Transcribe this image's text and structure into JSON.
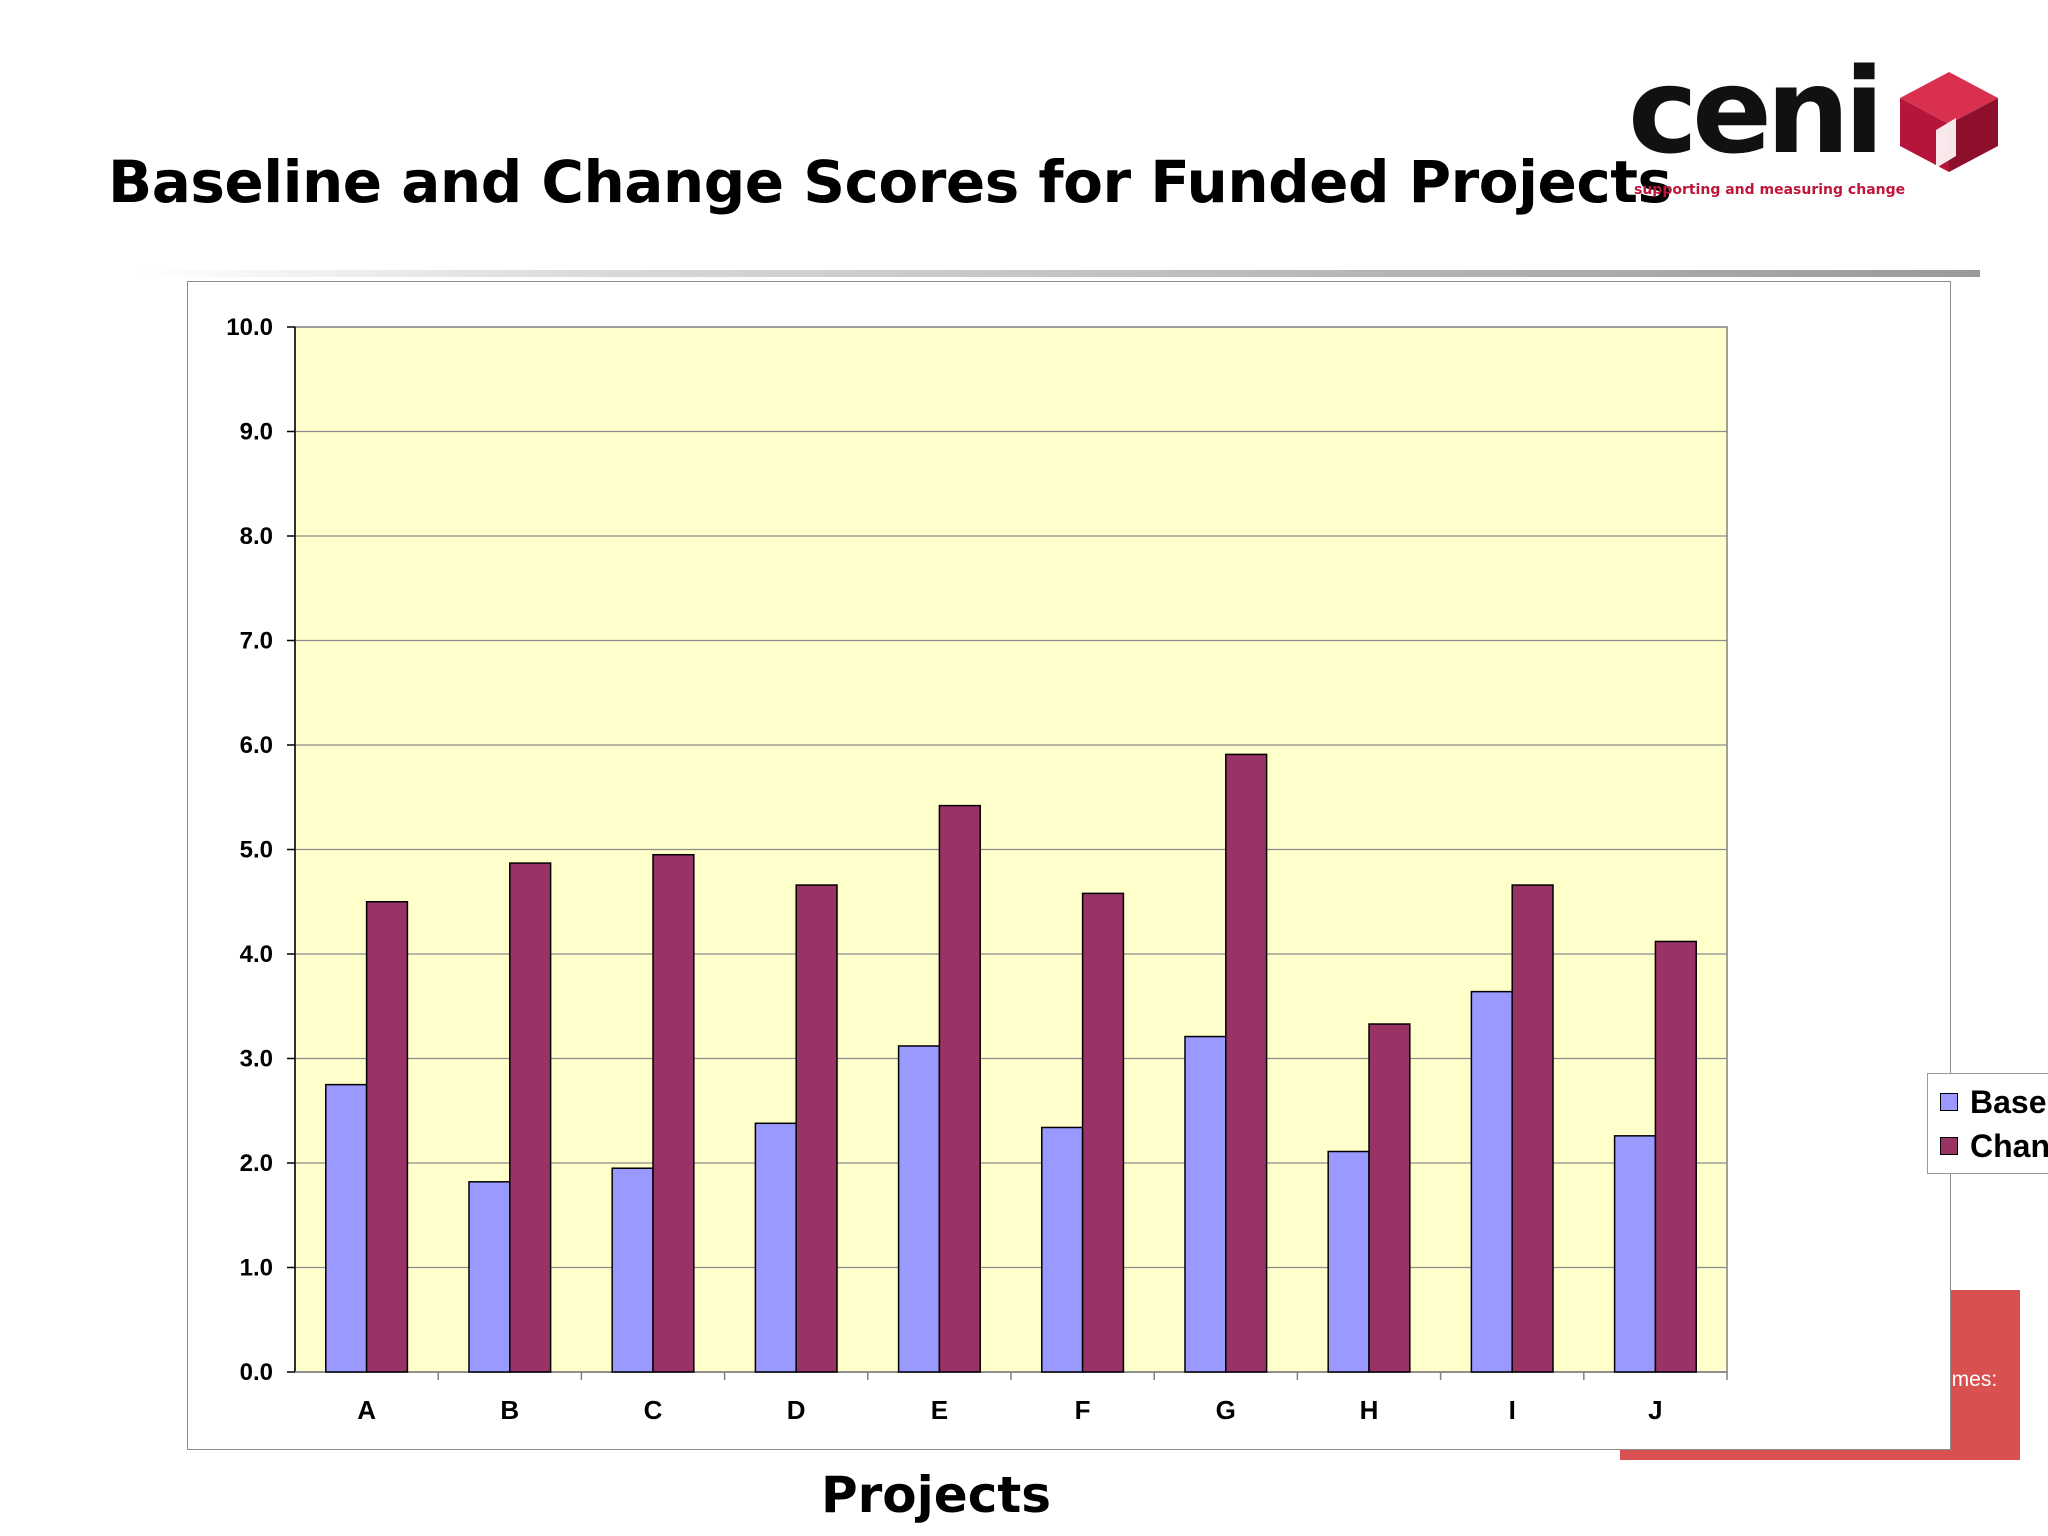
{
  "slide": {
    "title": "Baseline and Change Scores for Funded Projects"
  },
  "logo": {
    "name": "ceni",
    "tagline": "supporting and measuring change",
    "color": "#c0163a"
  },
  "background_text": "omes:",
  "chart_data": {
    "type": "bar",
    "categories": [
      "A",
      "B",
      "C",
      "D",
      "E",
      "F",
      "G",
      "H",
      "I",
      "J"
    ],
    "series": [
      {
        "name": "Baseline",
        "color": "#9999ff",
        "values": [
          2.75,
          1.82,
          1.95,
          2.38,
          3.12,
          2.34,
          3.21,
          2.11,
          3.64,
          2.26
        ]
      },
      {
        "name": "Change",
        "color": "#993366",
        "values": [
          4.5,
          4.87,
          4.95,
          4.66,
          5.42,
          4.58,
          5.91,
          3.33,
          4.66,
          4.12
        ]
      }
    ],
    "title": "",
    "xlabel": "Projects",
    "ylabel": "",
    "ylim": [
      0,
      10
    ],
    "yticks": [
      "0.0",
      "1.0",
      "2.0",
      "3.0",
      "4.0",
      "5.0",
      "6.0",
      "7.0",
      "8.0",
      "9.0",
      "10.0"
    ],
    "grid": true,
    "plot_background": "#ffffcc",
    "legend_position": "right"
  }
}
